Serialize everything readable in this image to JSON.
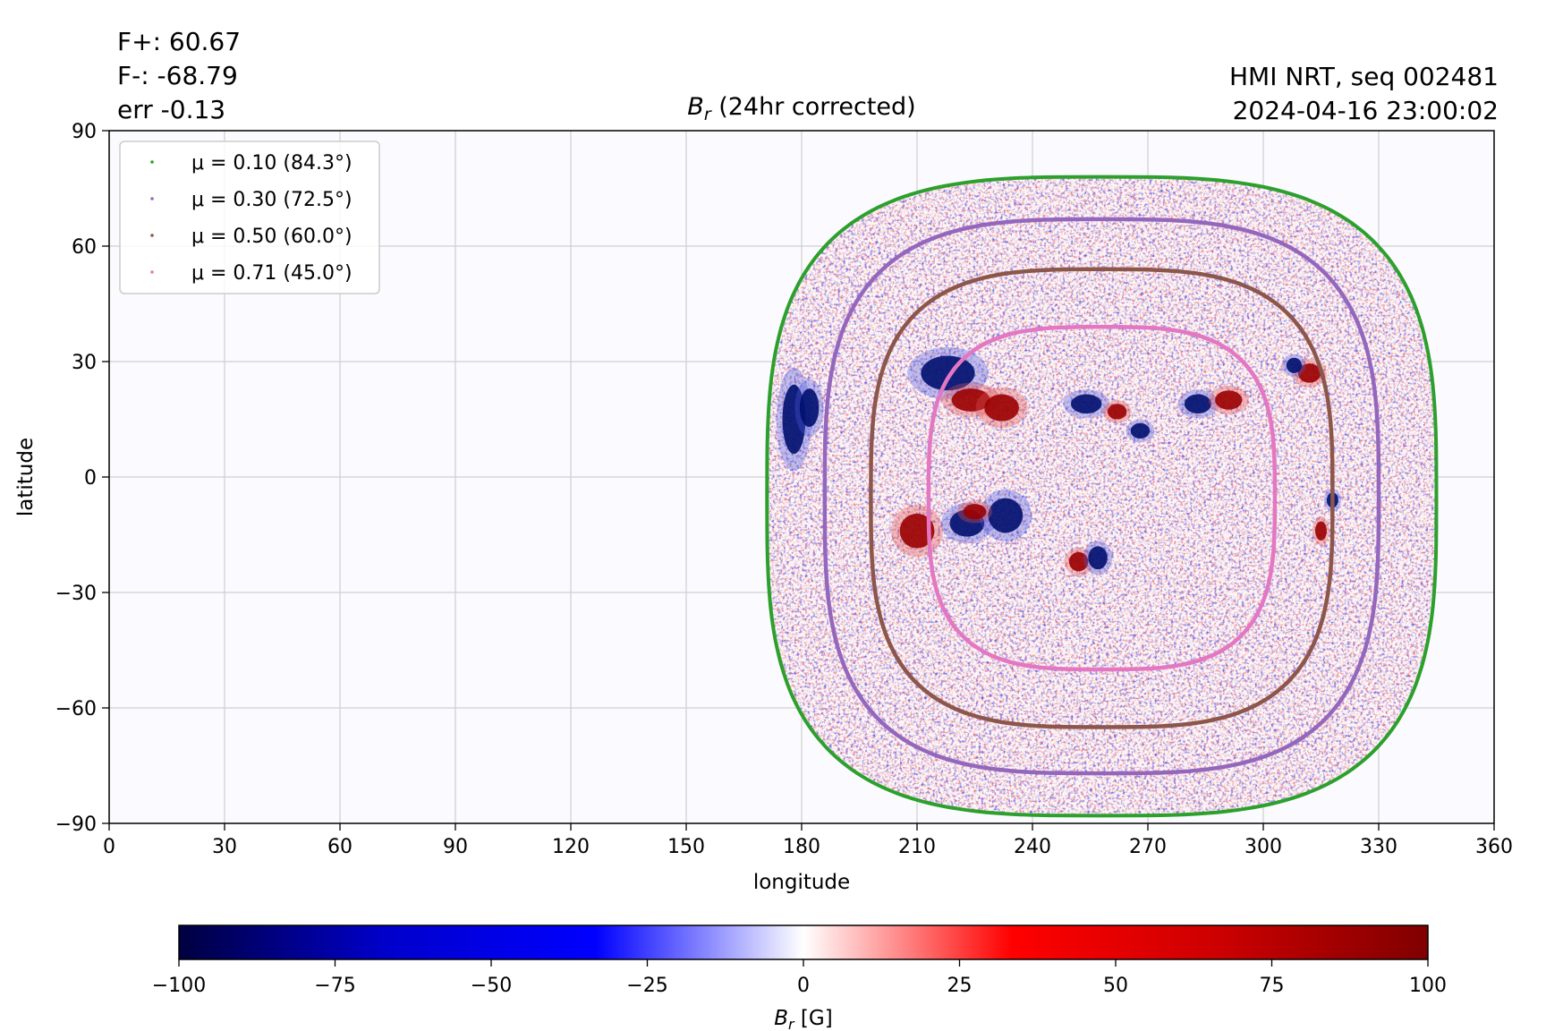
{
  "header": {
    "flux_pos": "F+: 60.67",
    "flux_neg": "F-: -68.79",
    "err": "err -0.13",
    "source": "HMI NRT, seq 002481",
    "timestamp": "2024-04-16 23:00:02"
  },
  "chart_data": {
    "type": "heatmap",
    "title_var": "B",
    "title_sub": "r",
    "title_rest": " (24hr corrected)",
    "xlabel": "longitude",
    "ylabel": "latitude",
    "xlim": [
      0,
      360
    ],
    "ylim": [
      -90,
      90
    ],
    "xticks": [
      0,
      30,
      60,
      90,
      120,
      150,
      180,
      210,
      240,
      270,
      300,
      330,
      360
    ],
    "yticks": [
      90,
      60,
      30,
      0,
      -30,
      -60,
      -90
    ],
    "ytick_labels": [
      "90",
      "60",
      "30",
      "0",
      "−30",
      "−60",
      "−90"
    ],
    "grid": true,
    "disk_center_lon": 258,
    "disk_center_lat": -5,
    "legend_position": "upper-left",
    "contours": [
      {
        "mu": "μ = 0.10 (84.3°)",
        "color": "#2ca02c",
        "half_width_lon": 87,
        "lat_top": 78,
        "lat_bottom": -88
      },
      {
        "mu": "μ = 0.30 (72.5°)",
        "color": "#9467bd",
        "half_width_lon": 72,
        "lat_top": 67,
        "lat_bottom": -77
      },
      {
        "mu": "μ = 0.50 (60.0°)",
        "color": "#8c564b",
        "half_width_lon": 60,
        "lat_top": 54,
        "lat_bottom": -65
      },
      {
        "mu": "μ = 0.71 (45.0°)",
        "color": "#e377c2",
        "half_width_lon": 45,
        "lat_top": 39,
        "lat_bottom": -50
      }
    ],
    "active_regions": [
      {
        "lon": 178,
        "lat": 15,
        "polarity": "negative",
        "size_lon": 6,
        "size_lat": 18
      },
      {
        "lon": 182,
        "lat": 18,
        "polarity": "negative",
        "size_lon": 5,
        "size_lat": 10
      },
      {
        "lon": 218,
        "lat": 27,
        "polarity": "negative",
        "size_lon": 14,
        "size_lat": 9
      },
      {
        "lon": 224,
        "lat": 20,
        "polarity": "positive",
        "size_lon": 10,
        "size_lat": 6
      },
      {
        "lon": 232,
        "lat": 18,
        "polarity": "positive",
        "size_lon": 9,
        "size_lat": 7
      },
      {
        "lon": 254,
        "lat": 19,
        "polarity": "negative",
        "size_lon": 8,
        "size_lat": 5
      },
      {
        "lon": 262,
        "lat": 17,
        "polarity": "positive",
        "size_lon": 5,
        "size_lat": 4
      },
      {
        "lon": 268,
        "lat": 12,
        "polarity": "negative",
        "size_lon": 5,
        "size_lat": 4
      },
      {
        "lon": 283,
        "lat": 19,
        "polarity": "negative",
        "size_lon": 7,
        "size_lat": 5
      },
      {
        "lon": 291,
        "lat": 20,
        "polarity": "positive",
        "size_lon": 7,
        "size_lat": 5
      },
      {
        "lon": 312,
        "lat": 27,
        "polarity": "positive",
        "size_lon": 6,
        "size_lat": 5
      },
      {
        "lon": 308,
        "lat": 29,
        "polarity": "negative",
        "size_lon": 4,
        "size_lat": 4
      },
      {
        "lon": 210,
        "lat": -14,
        "polarity": "positive",
        "size_lon": 9,
        "size_lat": 9
      },
      {
        "lon": 223,
        "lat": -12,
        "polarity": "negative",
        "size_lon": 9,
        "size_lat": 7
      },
      {
        "lon": 233,
        "lat": -10,
        "polarity": "negative",
        "size_lon": 9,
        "size_lat": 9
      },
      {
        "lon": 225,
        "lat": -9,
        "polarity": "positive",
        "size_lon": 6,
        "size_lat": 4
      },
      {
        "lon": 252,
        "lat": -22,
        "polarity": "positive",
        "size_lon": 5,
        "size_lat": 5
      },
      {
        "lon": 257,
        "lat": -21,
        "polarity": "negative",
        "size_lon": 5,
        "size_lat": 6
      },
      {
        "lon": 318,
        "lat": -6,
        "polarity": "negative",
        "size_lon": 3,
        "size_lat": 4
      },
      {
        "lon": 315,
        "lat": -14,
        "polarity": "positive",
        "size_lon": 3,
        "size_lat": 5
      }
    ],
    "colorbar": {
      "ticks": [
        -100,
        -75,
        -50,
        -25,
        0,
        25,
        50,
        75,
        100
      ],
      "tick_labels": [
        "−100",
        "−75",
        "−50",
        "−25",
        "0",
        "25",
        "50",
        "75",
        "100"
      ],
      "label_var": "B",
      "label_sub": "r",
      "label_rest": " [G]",
      "range": [
        -100,
        100
      ],
      "colormap": [
        "#000040",
        "#0000cc",
        "#0000ff",
        "#ffffff",
        "#ff0000",
        "#cc0000",
        "#800000"
      ]
    }
  }
}
